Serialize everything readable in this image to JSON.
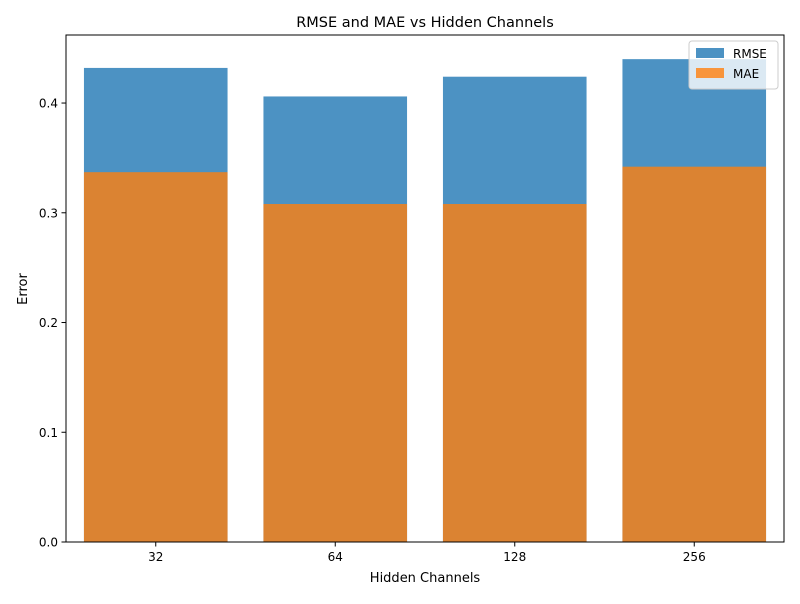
{
  "chart_data": {
    "type": "bar",
    "title": "RMSE and MAE vs Hidden Channels",
    "xlabel": "Hidden Channels",
    "ylabel": "Error",
    "categories": [
      "32",
      "64",
      "128",
      "256"
    ],
    "series": [
      {
        "name": "RMSE",
        "values": [
          0.432,
          0.406,
          0.424,
          0.44
        ],
        "color": "#1f77b4"
      },
      {
        "name": "MAE",
        "values": [
          0.337,
          0.308,
          0.308,
          0.342
        ],
        "color": "#ff7f0e"
      }
    ],
    "bar_opacity": 0.8,
    "overlap": true,
    "ylim": [
      0,
      0.462
    ],
    "yticks": [
      0.0,
      0.1,
      0.2,
      0.3,
      0.4
    ],
    "ytick_labels": [
      "0.0",
      "0.1",
      "0.2",
      "0.3",
      "0.4"
    ],
    "grid": false,
    "legend_position": "top-right"
  }
}
